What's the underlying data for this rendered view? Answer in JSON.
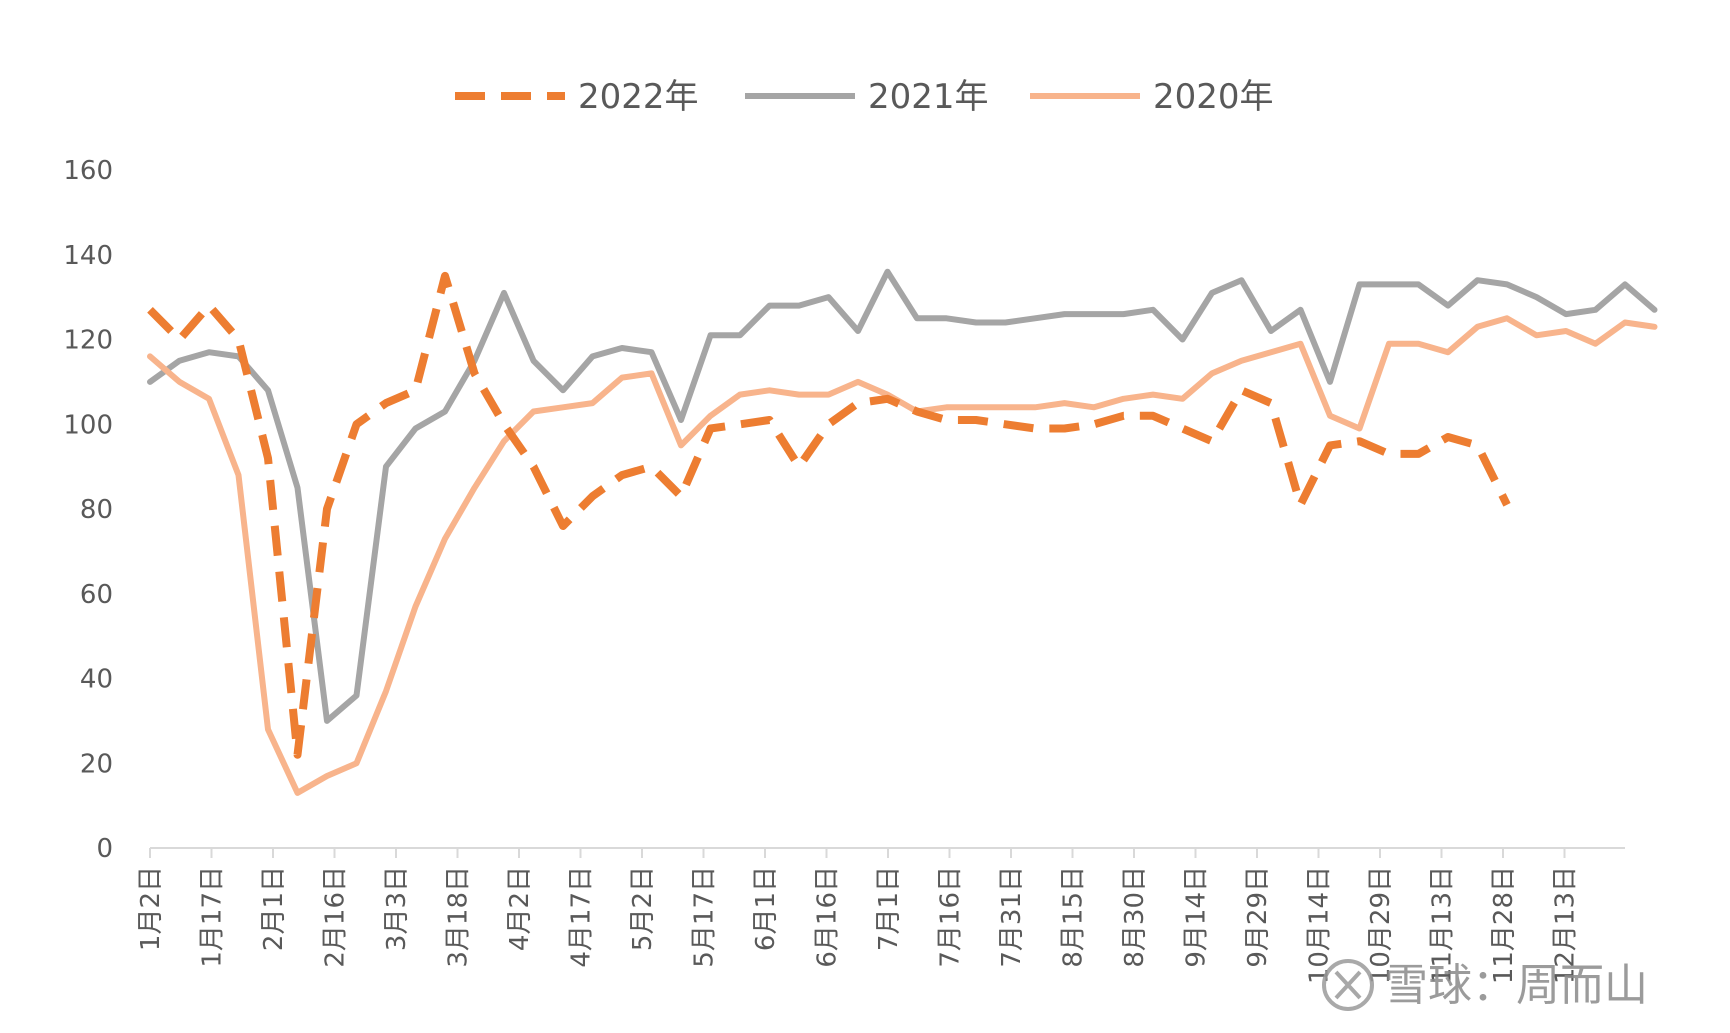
{
  "chart_data": {
    "type": "line",
    "title": "",
    "xlabel": "",
    "ylabel": "",
    "ylim": [
      0,
      160
    ],
    "yticks": [
      "0",
      "20",
      "40",
      "60",
      "80",
      "100",
      "120",
      "140",
      "160"
    ],
    "xtick_labels": [
      "1月2日",
      "1月17日",
      "2月1日",
      "2月16日",
      "3月3日",
      "3月18日",
      "4月2日",
      "4月17日",
      "5月2日",
      "5月17日",
      "6月1日",
      "6月16日",
      "7月1日",
      "7月16日",
      "7月31日",
      "8月15日",
      "8月30日",
      "9月14日",
      "9月29日",
      "10月14日",
      "10月29日",
      "11月13日",
      "11月28日",
      "12月13日"
    ],
    "grid": false,
    "legend_position": "top-center",
    "series": [
      {
        "name": "2022年",
        "color": "#ED7D31",
        "style": "dashed",
        "values": [
          127,
          120,
          128,
          120,
          92,
          22,
          80,
          100,
          105,
          108,
          135,
          112,
          100,
          90,
          76,
          83,
          88,
          90,
          83,
          99,
          100,
          101,
          90,
          100,
          105,
          106,
          103,
          101,
          101,
          100,
          99,
          99,
          100,
          102,
          102,
          99,
          96,
          108,
          105,
          81,
          95,
          96,
          93,
          93,
          97,
          95,
          81
        ]
      },
      {
        "name": "2021年",
        "color": "#A5A5A5",
        "style": "solid",
        "values": [
          110,
          115,
          117,
          116,
          108,
          85,
          30,
          36,
          90,
          99,
          103,
          115,
          131,
          115,
          108,
          116,
          118,
          117,
          101,
          121,
          121,
          128,
          128,
          130,
          122,
          136,
          125,
          125,
          124,
          124,
          125,
          126,
          126,
          126,
          127,
          120,
          131,
          134,
          122,
          127,
          110,
          133,
          133,
          133,
          128,
          134,
          133,
          130,
          126,
          127,
          133,
          127
        ]
      },
      {
        "name": "2020年",
        "color": "#F8B48C",
        "style": "solid",
        "values": [
          116,
          110,
          106,
          88,
          28,
          13,
          17,
          20,
          37,
          57,
          73,
          85,
          96,
          103,
          104,
          105,
          111,
          112,
          95,
          102,
          107,
          108,
          107,
          107,
          110,
          107,
          103,
          104,
          104,
          104,
          104,
          105,
          104,
          106,
          107,
          106,
          112,
          115,
          117,
          119,
          102,
          99,
          119,
          119,
          117,
          123,
          125,
          121,
          122,
          119,
          124,
          123
        ]
      }
    ]
  },
  "watermark": {
    "text": "雪球：周而山",
    "icon": "snowball-logo-icon"
  }
}
